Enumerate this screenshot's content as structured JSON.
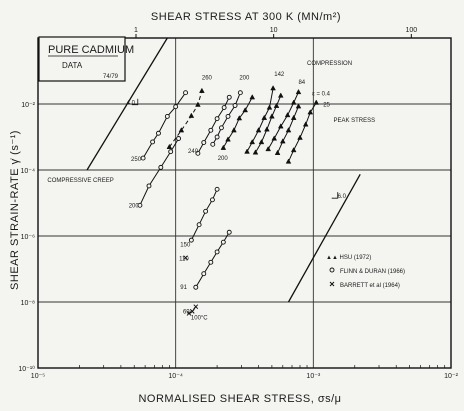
{
  "chart_data": {
    "type": "scatter",
    "title": "PURE CADMIUM",
    "subtitle": "DATA",
    "ref": "74/79",
    "xlabel": "NORMALISED SHEAR STRESS, σs/μ",
    "ylabel": "SHEAR STRAIN-RATE γ̇ (s⁻¹)",
    "top_axis_label": "SHEAR STRESS AT 300 K (MN/m²)",
    "x_scale": "log",
    "y_scale": "log",
    "xlim": [
      1e-05,
      0.01
    ],
    "ylim": [
      1e-10,
      1
    ],
    "x_ticks": [
      {
        "v": 1e-05,
        "label": "10⁻⁵"
      },
      {
        "v": 0.0001,
        "label": "10⁻⁴"
      },
      {
        "v": 0.001,
        "label": "10⁻³"
      },
      {
        "v": 0.01,
        "label": "10⁻²"
      }
    ],
    "y_ticks": [
      {
        "v": 0.01,
        "label": "10⁻²"
      },
      {
        "v": 0.0001,
        "label": "10⁻⁴"
      },
      {
        "v": 1e-06,
        "label": "10⁻⁶"
      },
      {
        "v": 1e-08,
        "label": "10⁻⁸"
      },
      {
        "v": 1e-10,
        "label": "10⁻¹⁰"
      }
    ],
    "top_ticks": [
      {
        "v": 5.15e-05,
        "label": "1"
      },
      {
        "v": 0.000515,
        "label": "10"
      },
      {
        "v": 0.00515,
        "label": "100"
      }
    ],
    "grid": true,
    "field_labels": [
      {
        "text": "COMPRESSION",
        "x": 0.0009,
        "y": 0.15
      },
      {
        "text": "PEAK STRESS",
        "x": 0.0014,
        "y": 0.0028
      },
      {
        "text": "COMPRESSIVE CREEP",
        "x": 1.17e-05,
        "y": 4.3e-05
      },
      {
        "text": "ε = 0.4",
        "x": 0.00098,
        "y": 0.018
      },
      {
        "text": "4.0",
        "x": 4.4e-05,
        "y": 0.0095
      },
      {
        "text": "6.0",
        "x": 0.0015,
        "y": 1.42e-05
      }
    ],
    "temperature_labels": [
      {
        "text": "260",
        "x": 0.000155,
        "y": 0.055
      },
      {
        "text": "200",
        "x": 0.00029,
        "y": 0.055
      },
      {
        "text": "142",
        "x": 0.00052,
        "y": 0.07
      },
      {
        "text": "84",
        "x": 0.00078,
        "y": 0.04
      },
      {
        "text": "25",
        "x": 0.00118,
        "y": 0.0083
      },
      {
        "text": "250",
        "x": 4.74e-05,
        "y": 0.000185
      },
      {
        "text": "240",
        "x": 0.000123,
        "y": 0.00033
      },
      {
        "text": "200",
        "x": 0.000202,
        "y": 0.0002
      },
      {
        "text": "200",
        "x": 4.56e-05,
        "y": 7.3e-06
      },
      {
        "text": "150",
        "x": 0.000108,
        "y": 4.8e-07
      },
      {
        "text": "110",
        "x": 0.000106,
        "y": 1.8e-07
      },
      {
        "text": "91",
        "x": 0.000108,
        "y": 2.52e-08
      },
      {
        "text": "69",
        "x": 0.000113,
        "y": 4.5e-09
      },
      {
        "text": "100°C",
        "x": 0.000129,
        "y": 2.9e-09
      }
    ],
    "legend": {
      "position": "bottom-right",
      "entries": [
        {
          "marker": "triangle",
          "label": "▲▲ HSU (1972)"
        },
        {
          "marker": "circle",
          "label": "FLINN & DURAN (1966)"
        },
        {
          "marker": "cross",
          "label": "BARRETT et al (1964)"
        }
      ]
    },
    "reference_lines": [
      {
        "x": [
          2.27e-05,
          8.7e-05
        ],
        "y": [
          0.0001,
          1
        ]
      },
      {
        "x": [
          0.00066,
          0.00219
        ],
        "y": [
          1e-08,
          7.4e-05
        ]
      }
    ],
    "series": [
      {
        "name": "260",
        "marker": "triangle",
        "dashed": true,
        "points": [
          [
            9e-05,
            0.0005
          ],
          [
            0.00011,
            0.0016
          ],
          [
            0.00013,
            0.0044
          ],
          [
            0.000145,
            0.0095
          ],
          [
            0.000155,
            0.025
          ]
        ]
      },
      {
        "name": "250",
        "marker": "circle",
        "points": [
          [
            5.8e-05,
            0.00023
          ],
          [
            6.8e-05,
            0.00071
          ],
          [
            7.5e-05,
            0.0013
          ],
          [
            8.7e-05,
            0.0042
          ],
          [
            0.0001,
            0.0083
          ],
          [
            0.000118,
            0.022
          ]
        ]
      },
      {
        "name": "240",
        "marker": "circle",
        "points": [
          [
            0.000145,
            0.00032
          ],
          [
            0.00016,
            0.00068
          ],
          [
            0.00018,
            0.0016
          ],
          [
            0.0002,
            0.0036
          ],
          [
            0.000225,
            0.0078
          ],
          [
            0.000245,
            0.016
          ]
        ]
      },
      {
        "name": "200",
        "marker": "circle",
        "points": [
          [
            0.000186,
            0.0006
          ],
          [
            0.0002,
            0.001
          ],
          [
            0.000215,
            0.0019
          ],
          [
            0.00024,
            0.0042
          ],
          [
            0.00027,
            0.009
          ],
          [
            0.000295,
            0.022
          ]
        ]
      },
      {
        "name": "200",
        "marker": "triangle",
        "points": [
          [
            0.000222,
            0.00047
          ],
          [
            0.00024,
            0.00084
          ],
          [
            0.000265,
            0.0016
          ],
          [
            0.00029,
            0.0037
          ],
          [
            0.00032,
            0.0065
          ],
          [
            0.00036,
            0.016
          ]
        ]
      },
      {
        "name": "142",
        "marker": "triangle",
        "points": [
          [
            0.00033,
            0.00036
          ],
          [
            0.00036,
            0.0007
          ],
          [
            0.0004,
            0.0016
          ],
          [
            0.00044,
            0.0038
          ],
          [
            0.00048,
            0.0078
          ],
          [
            0.00051,
            0.03
          ]
        ]
      },
      {
        "name": "142",
        "marker": "triangle",
        "points": [
          [
            0.00038,
            0.00034
          ],
          [
            0.00042,
            0.0007
          ],
          [
            0.00046,
            0.0017
          ],
          [
            0.0005,
            0.0042
          ],
          [
            0.00054,
            0.0088
          ],
          [
            0.00058,
            0.018
          ]
        ]
      },
      {
        "name": "84",
        "marker": "triangle",
        "points": [
          [
            0.00047,
            0.00043
          ],
          [
            0.00052,
            0.0009
          ],
          [
            0.00058,
            0.0021
          ],
          [
            0.00065,
            0.0046
          ],
          [
            0.00072,
            0.011
          ],
          [
            0.00078,
            0.023
          ]
        ]
      },
      {
        "name": "84",
        "marker": "triangle",
        "points": [
          [
            0.00055,
            0.00033
          ],
          [
            0.0006,
            0.00074
          ],
          [
            0.00066,
            0.0016
          ],
          [
            0.00072,
            0.0038
          ],
          [
            0.00078,
            0.0085
          ]
        ]
      },
      {
        "name": "25",
        "marker": "triangle",
        "points": [
          [
            0.00066,
            0.00018
          ],
          [
            0.00072,
            0.0004
          ],
          [
            0.0008,
            0.00095
          ],
          [
            0.00088,
            0.0024
          ],
          [
            0.00095,
            0.0056
          ],
          [
            0.00105,
            0.011
          ]
        ]
      },
      {
        "name": "200",
        "marker": "circle",
        "points": [
          [
            5.5e-05,
            8.5e-06
          ],
          [
            6.4e-05,
            3.3e-05
          ],
          [
            7.8e-05,
            0.00012
          ],
          [
            9.2e-05,
            0.00036
          ],
          [
            0.000105,
            0.0009
          ]
        ]
      },
      {
        "name": "150",
        "marker": "circle",
        "points": [
          [
            0.00013,
            7.5e-07
          ],
          [
            0.000148,
            2.2e-06
          ],
          [
            0.000165,
            5.6e-06
          ],
          [
            0.000185,
            1.25e-05
          ],
          [
            0.0002,
            2.6e-05
          ]
        ]
      },
      {
        "name": "110",
        "marker": "cross",
        "points": [
          [
            0.000118,
            2.2e-07
          ]
        ]
      },
      {
        "name": "91",
        "marker": "circle",
        "points": [
          [
            0.00014,
            2.8e-08
          ],
          [
            0.00016,
            7.2e-08
          ],
          [
            0.00018,
            1.6e-07
          ],
          [
            0.0002,
            3.3e-07
          ],
          [
            0.000222,
            6.5e-07
          ],
          [
            0.000245,
            1.3e-06
          ]
        ]
      },
      {
        "name": "69 / 100°C",
        "marker": "cross",
        "points": [
          [
            0.000125,
            4.5e-09
          ],
          [
            0.000132,
            5.2e-09
          ],
          [
            0.00014,
            7.2e-09
          ]
        ]
      }
    ]
  }
}
